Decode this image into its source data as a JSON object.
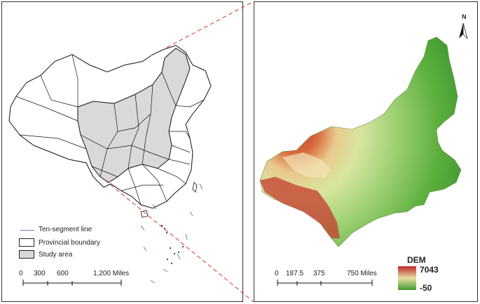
{
  "left_map": {
    "legend": {
      "ten_segment_line": "Ten-segment line",
      "provincial_boundary": "Provincial boundary",
      "study_area": "Study area"
    },
    "scale": {
      "labels": [
        "0",
        "300",
        "600",
        "1,200 Miles"
      ]
    },
    "colors": {
      "study_area_fill": "#d9d9d9",
      "boundary": "#111111",
      "ten_segment_line": "#6f7fc2"
    }
  },
  "right_map": {
    "north_label": "N",
    "legend": {
      "title": "DEM",
      "max": "7043",
      "min": "-50",
      "colors": [
        "#c0262b",
        "#e8e0a2",
        "#3f9a2e"
      ]
    },
    "scale": {
      "labels": [
        "0",
        "187.5",
        "375",
        "750 Miles"
      ]
    }
  },
  "connector_color": "#d9342b"
}
